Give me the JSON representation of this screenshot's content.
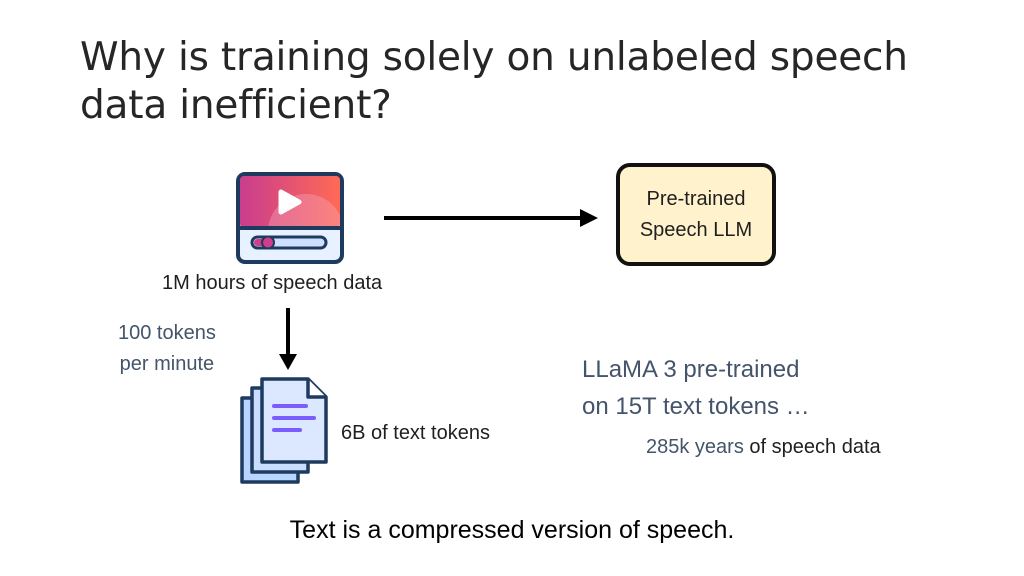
{
  "title": "Why is training solely on unlabeled speech data inefficient?",
  "nodes": {
    "speech_source": {
      "icon": "video-player-icon",
      "label": "1M hours of speech data"
    },
    "speech_llm": {
      "label_line1": "Pre-trained",
      "label_line2": "Speech LLM"
    },
    "text_tokens": {
      "icon": "document-stack-icon",
      "label": "6B of text tokens"
    }
  },
  "edges": {
    "conversion_rate_line1": "100 tokens",
    "conversion_rate_line2": "per minute"
  },
  "llama_note": {
    "line1": "LLaMA 3 pre-trained",
    "line2": "on 15T text tokens …",
    "equivalent_value": "285k years",
    "equivalent_rest": "of speech data"
  },
  "conclusion": "Text is a compressed version of speech.",
  "colors": {
    "llm_fill": "#fff2cc",
    "player_top_gradient": [
      "#d13d8a",
      "#ff6b5a"
    ],
    "player_frame": "#1f3a5f",
    "document_blue": "#cfe2ff",
    "document_lines": "#7a5cff",
    "slate_text": "#44546a"
  }
}
